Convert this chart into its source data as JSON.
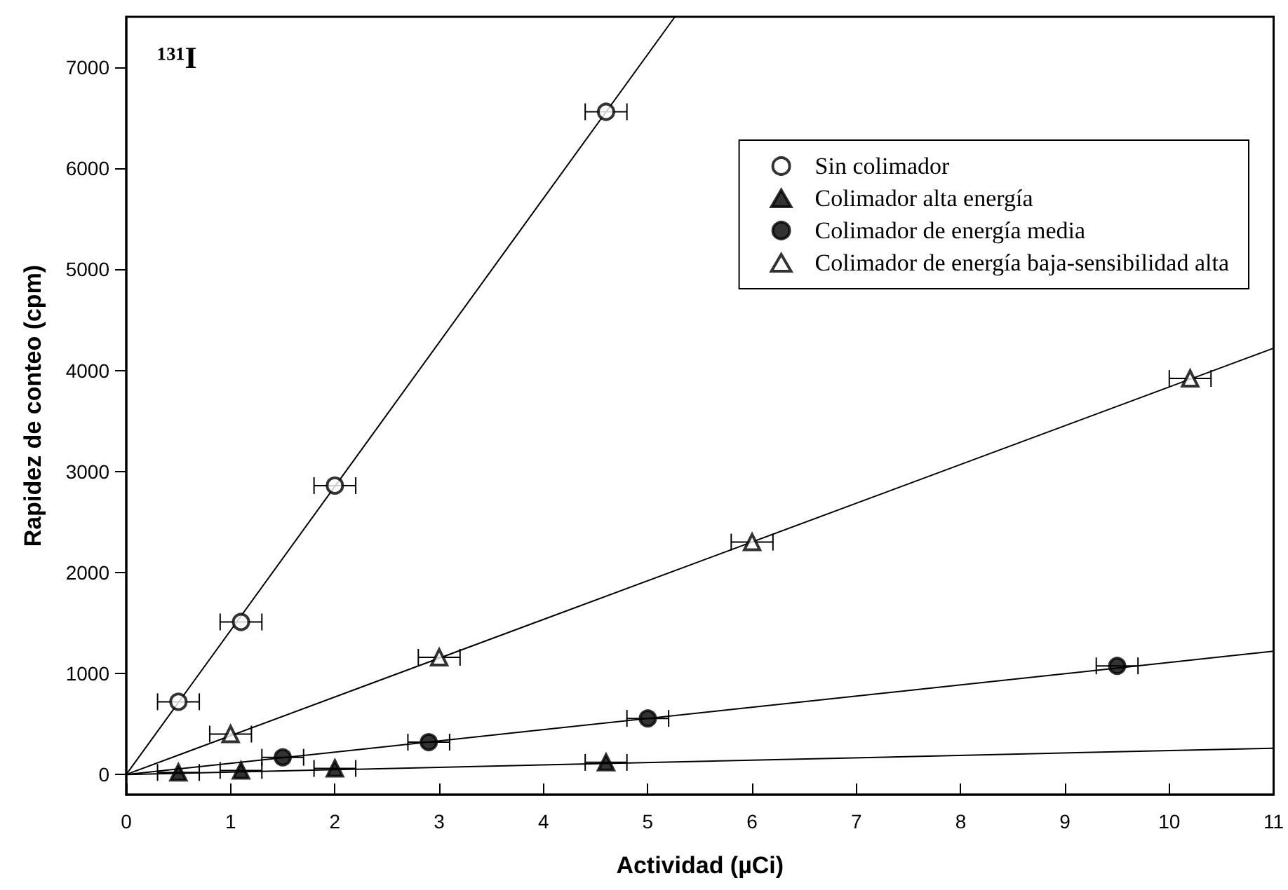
{
  "chart_data": {
    "type": "scatter",
    "xlabel": "Actividad (µCi)",
    "ylabel": "Rapidez de conteo (cpm)",
    "annotations": [
      "¹³¹I"
    ],
    "xlim": [
      0,
      11
    ],
    "xticks": [
      0,
      1,
      2,
      3,
      4,
      5,
      6,
      7,
      8,
      9,
      10,
      11
    ],
    "ylim": [
      -200,
      7500
    ],
    "yticks": [
      0,
      1000,
      2000,
      3000,
      4000,
      5000,
      6000,
      7000
    ],
    "grid": false,
    "legend": "top right",
    "series": [
      {
        "name": "Sin colimador",
        "color": "#ffffff",
        "marker": "circle",
        "x": [
          0.5,
          1.1,
          2.0,
          4.6
        ],
        "values": [
          720,
          1510,
          2860,
          6560
        ],
        "xerrors": [
          0.2,
          0.2,
          0.2,
          0.2
        ]
      },
      {
        "name": "Colimador alta energía",
        "color": "#000000",
        "marker": "triangle",
        "x": [
          0.5,
          1.1,
          2.0,
          4.6
        ],
        "values": [
          20,
          40,
          60,
          120
        ],
        "xerrors": [
          0.2,
          0.2,
          0.2,
          0.2
        ]
      },
      {
        "name": "Colimador de energía media",
        "color": "#000000",
        "marker": "circle",
        "x": [
          1.5,
          2.9,
          5.0,
          9.5
        ],
        "values": [
          170,
          320,
          555,
          1075
        ],
        "xerrors": [
          0.2,
          0.2,
          0.2,
          0.2
        ]
      },
      {
        "name": "Colimador de energía baja-sensibilidad alta",
        "color": "#ffffff",
        "marker": "triangle",
        "x": [
          1.0,
          3.0,
          6.0,
          10.2
        ],
        "values": [
          400,
          1160,
          2300,
          3920
        ],
        "xerrors": [
          0.2,
          0.2,
          0.2,
          0.2
        ]
      },
      {
        "type": "line",
        "color": "#000000",
        "marker": "none",
        "x": [
          0,
          5.26
        ],
        "values": [
          0,
          7500
        ]
      },
      {
        "type": "line",
        "color": "#000000",
        "marker": "none",
        "x": [
          0,
          11
        ],
        "values": [
          0,
          260
        ]
      },
      {
        "type": "line",
        "color": "#000000",
        "marker": "none",
        "x": [
          0,
          11
        ],
        "values": [
          0,
          1220
        ]
      },
      {
        "type": "line",
        "color": "#000000",
        "marker": "none",
        "x": [
          0,
          11
        ],
        "values": [
          0,
          4220
        ]
      }
    ]
  }
}
